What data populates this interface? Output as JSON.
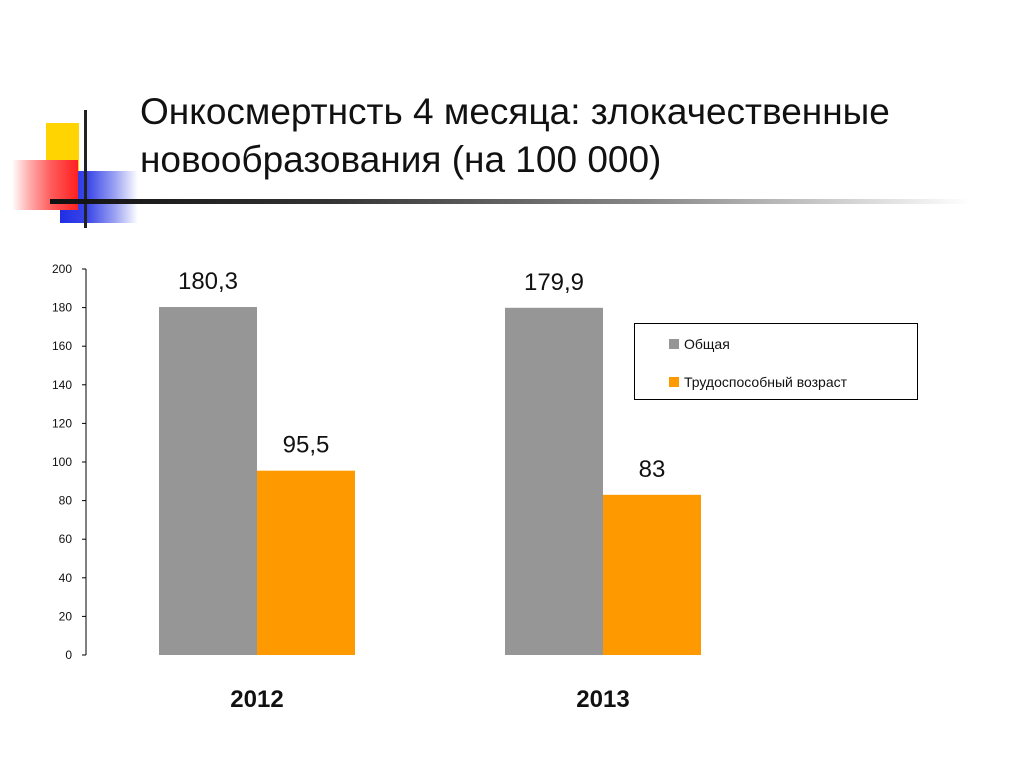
{
  "slide": {
    "title_line1": "Онкосмертнсть 4 месяца: злокачественные",
    "title_line2": "новообразования (на 100 000)"
  },
  "chart_data": {
    "type": "bar",
    "categories": [
      "2012",
      "2013"
    ],
    "series": [
      {
        "name": "Общая",
        "values": [
          180.3,
          179.9
        ],
        "labels": [
          "180,3",
          "179,9"
        ],
        "color": "#969696"
      },
      {
        "name": "Трудоспособный возраст",
        "values": [
          95.5,
          83
        ],
        "labels": [
          "95,5",
          "83"
        ],
        "color": "#ff9900"
      }
    ],
    "ylim": [
      0,
      200
    ],
    "yticks": [
      0,
      20,
      40,
      60,
      80,
      100,
      120,
      140,
      160,
      180,
      200
    ],
    "grid": false,
    "legend_position": "right"
  }
}
